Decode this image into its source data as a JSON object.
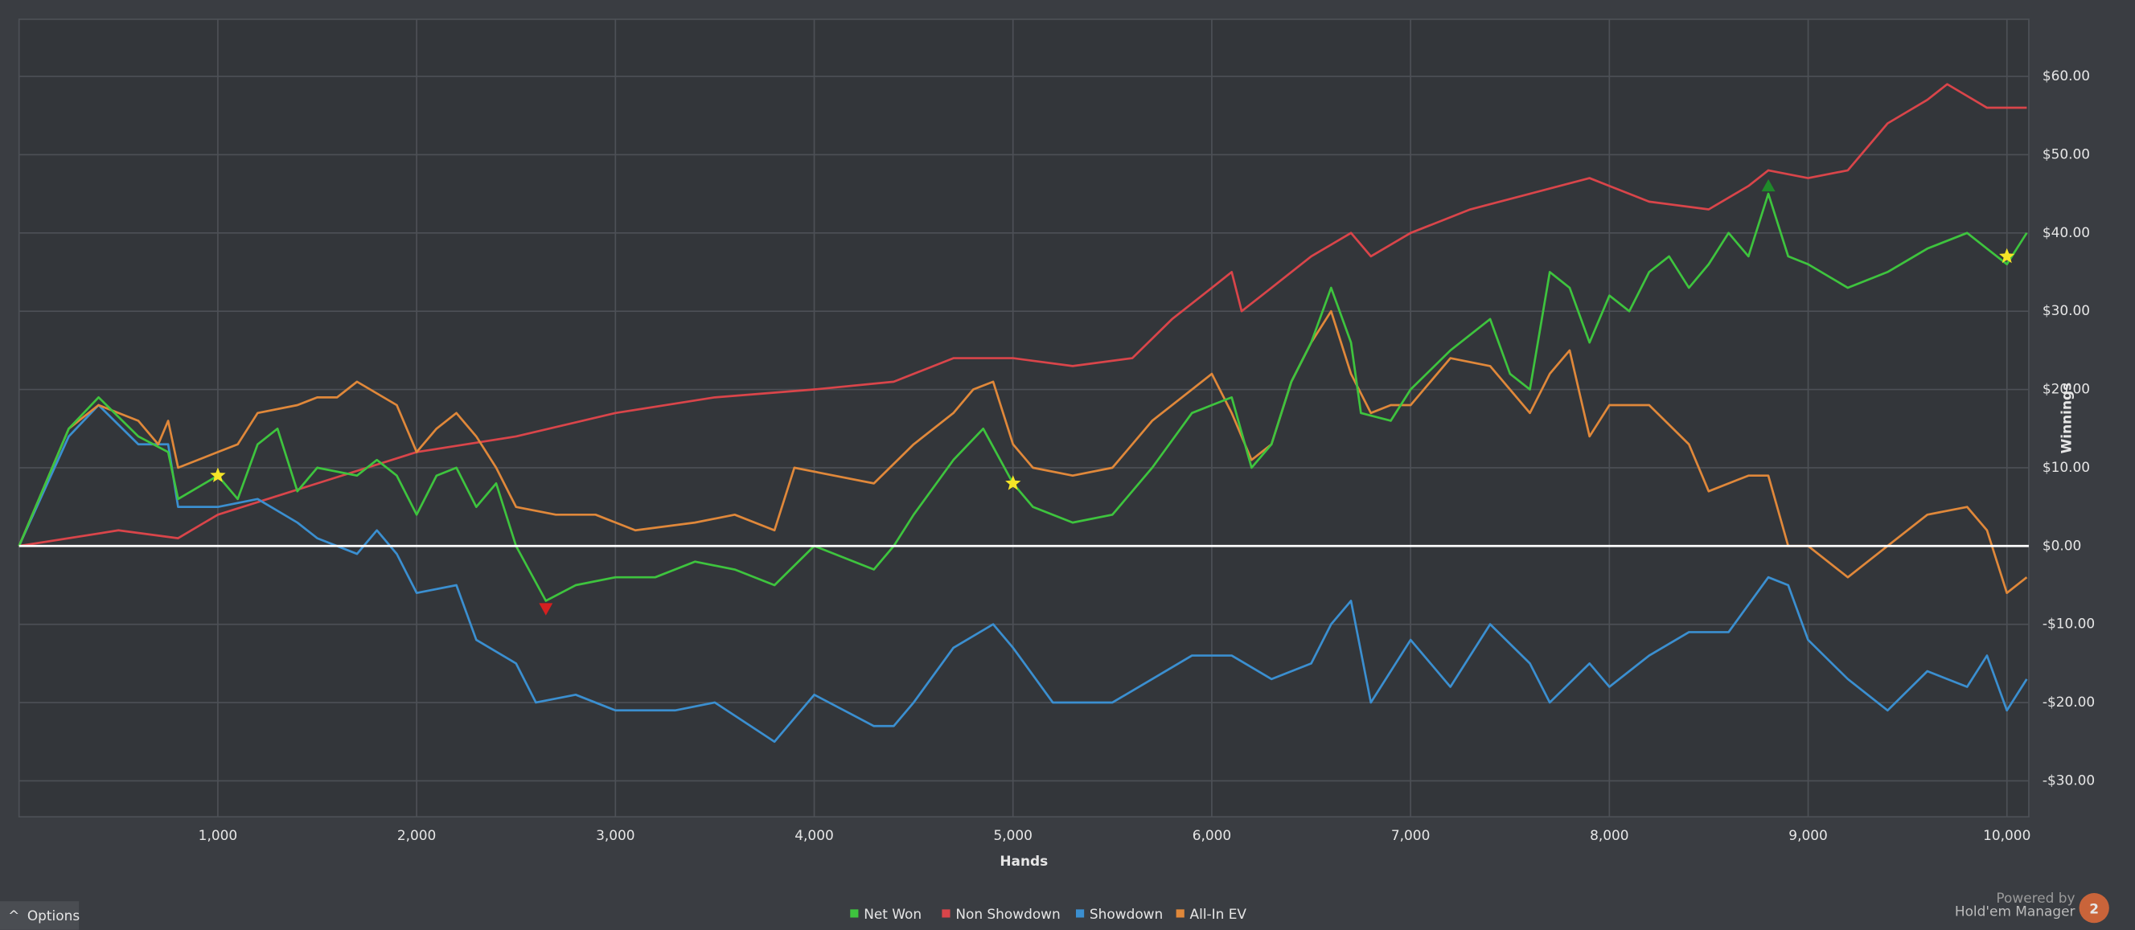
{
  "chart_data": {
    "type": "line",
    "x_label": "Hands",
    "y_label": "Winnings",
    "xlim": [
      0,
      10110
    ],
    "ylim": [
      -34.6,
      67.3
    ],
    "xticks": [
      {
        "value": 1000,
        "label": "1,000"
      },
      {
        "value": 2000,
        "label": "2,000"
      },
      {
        "value": 3000,
        "label": "3,000"
      },
      {
        "value": 4000,
        "label": "4,000"
      },
      {
        "value": 5000,
        "label": "5,000"
      },
      {
        "value": 6000,
        "label": "6,000"
      },
      {
        "value": 7000,
        "label": "7,000"
      },
      {
        "value": 8000,
        "label": "8,000"
      },
      {
        "value": 9000,
        "label": "9,000"
      },
      {
        "value": 10000,
        "label": "10,000"
      }
    ],
    "yticks": [
      {
        "value": -30,
        "label": "-$30.00"
      },
      {
        "value": -20,
        "label": "-$20.00"
      },
      {
        "value": -10,
        "label": "-$10.00"
      },
      {
        "value": 0,
        "label": "$0.00"
      },
      {
        "value": 10,
        "label": "$10.00"
      },
      {
        "value": 20,
        "label": "$20.00"
      },
      {
        "value": 30,
        "label": "$30.00"
      },
      {
        "value": 40,
        "label": "$40.00"
      },
      {
        "value": 50,
        "label": "$50.00"
      },
      {
        "value": 60,
        "label": "$60.00"
      }
    ],
    "grid": true,
    "zero_line": true,
    "series": [
      {
        "name": "Net Won",
        "color": "#3ec43e",
        "x": [
          0,
          250,
          400,
          600,
          750,
          800,
          1000,
          1100,
          1200,
          1300,
          1400,
          1500,
          1700,
          1800,
          1900,
          2000,
          2100,
          2200,
          2300,
          2400,
          2500,
          2650,
          2800,
          3000,
          3200,
          3400,
          3600,
          3800,
          4000,
          4200,
          4300,
          4400,
          4500,
          4700,
          4850,
          5000,
          5100,
          5300,
          5500,
          5700,
          5900,
          6000,
          6100,
          6200,
          6300,
          6400,
          6500,
          6600,
          6700,
          6750,
          6900,
          7000,
          7200,
          7400,
          7500,
          7600,
          7700,
          7800,
          7900,
          8000,
          8100,
          8200,
          8300,
          8400,
          8500,
          8600,
          8700,
          8800,
          8900,
          9000,
          9200,
          9400,
          9600,
          9800,
          9900,
          10000,
          10100
        ],
        "values": [
          0,
          15,
          19,
          14,
          12,
          6,
          9,
          6,
          13,
          15,
          7,
          10,
          9,
          11,
          9,
          4,
          9,
          10,
          5,
          8,
          0,
          -7,
          -5,
          -4,
          -4,
          -2,
          -3,
          -5,
          0,
          -2,
          -3,
          0,
          4,
          11,
          15,
          8,
          5,
          3,
          4,
          10,
          17,
          18,
          19,
          10,
          13,
          21,
          26,
          33,
          26,
          17,
          16,
          20,
          25,
          29,
          22,
          20,
          35,
          33,
          26,
          32,
          30,
          35,
          37,
          33,
          36,
          40,
          37,
          45,
          37,
          36,
          33,
          35,
          38,
          40,
          38,
          36,
          40
        ]
      },
      {
        "name": "Non Showdown",
        "color": "#d9454a",
        "x": [
          0,
          500,
          800,
          1000,
          1500,
          2000,
          2500,
          3000,
          3500,
          4000,
          4400,
          4700,
          5000,
          5300,
          5600,
          5800,
          6000,
          6100,
          6150,
          6300,
          6500,
          6700,
          6800,
          7000,
          7300,
          7600,
          7900,
          8000,
          8200,
          8500,
          8700,
          8800,
          9000,
          9200,
          9400,
          9600,
          9700,
          9900,
          10100
        ],
        "values": [
          0,
          2,
          1,
          4,
          8,
          12,
          14,
          17,
          19,
          20,
          21,
          24,
          24,
          23,
          24,
          29,
          33,
          35,
          30,
          33,
          37,
          40,
          37,
          40,
          43,
          45,
          47,
          46,
          44,
          43,
          46,
          48,
          47,
          48,
          54,
          57,
          59,
          56,
          56
        ]
      },
      {
        "name": "Showdown",
        "color": "#3b8fd0",
        "x": [
          0,
          250,
          400,
          600,
          750,
          800,
          1000,
          1200,
          1400,
          1500,
          1700,
          1800,
          1900,
          2000,
          2200,
          2300,
          2500,
          2600,
          2800,
          3000,
          3300,
          3500,
          3800,
          4000,
          4300,
          4400,
          4500,
          4700,
          4900,
          5000,
          5200,
          5500,
          5700,
          5900,
          6100,
          6300,
          6500,
          6600,
          6700,
          6800,
          7000,
          7200,
          7400,
          7600,
          7700,
          7900,
          8000,
          8200,
          8400,
          8600,
          8800,
          8900,
          9000,
          9200,
          9400,
          9600,
          9800,
          9900,
          10000,
          10100
        ],
        "values": [
          0,
          14,
          18,
          13,
          13,
          5,
          5,
          6,
          3,
          1,
          -1,
          2,
          -1,
          -6,
          -5,
          -12,
          -15,
          -20,
          -19,
          -21,
          -21,
          -20,
          -25,
          -19,
          -23,
          -23,
          -20,
          -13,
          -10,
          -13,
          -20,
          -20,
          -17,
          -14,
          -14,
          -17,
          -15,
          -10,
          -7,
          -20,
          -12,
          -18,
          -10,
          -15,
          -20,
          -15,
          -18,
          -14,
          -11,
          -11,
          -4,
          -5,
          -12,
          -17,
          -21,
          -16,
          -18,
          -14,
          -21,
          -17
        ]
      },
      {
        "name": "All-In EV",
        "color": "#e0883a",
        "x": [
          0,
          250,
          400,
          600,
          700,
          750,
          800,
          1000,
          1100,
          1200,
          1400,
          1500,
          1600,
          1700,
          1900,
          2000,
          2100,
          2200,
          2300,
          2400,
          2500,
          2700,
          2900,
          3100,
          3400,
          3600,
          3800,
          3900,
          4100,
          4300,
          4500,
          4700,
          4800,
          4900,
          5000,
          5100,
          5300,
          5500,
          5700,
          5900,
          6000,
          6100,
          6200,
          6300,
          6400,
          6500,
          6600,
          6700,
          6800,
          6900,
          7000,
          7200,
          7400,
          7600,
          7700,
          7800,
          7900,
          8000,
          8200,
          8400,
          8500,
          8700,
          8800,
          8900,
          9000,
          9200,
          9400,
          9600,
          9800,
          9900,
          10000,
          10100
        ],
        "values": [
          0,
          15,
          18,
          16,
          13,
          16,
          10,
          12,
          13,
          17,
          18,
          19,
          19,
          21,
          18,
          12,
          15,
          17,
          14,
          10,
          5,
          4,
          4,
          2,
          3,
          4,
          2,
          10,
          9,
          8,
          13,
          17,
          20,
          21,
          13,
          10,
          9,
          10,
          16,
          20,
          22,
          17,
          11,
          13,
          21,
          26,
          30,
          22,
          17,
          18,
          18,
          24,
          23,
          17,
          22,
          25,
          14,
          18,
          18,
          13,
          7,
          9,
          9,
          0,
          0,
          -4,
          0,
          4,
          5,
          2,
          -6,
          -4
        ]
      }
    ],
    "markers": [
      {
        "shape": "star",
        "color": "#f5e427",
        "x": 1000,
        "y": 9
      },
      {
        "shape": "star",
        "color": "#f5e427",
        "x": 5000,
        "y": 8
      },
      {
        "shape": "star",
        "color": "#f5e427",
        "x": 10000,
        "y": 37
      },
      {
        "shape": "triangle-down",
        "color": "#d42020",
        "x": 2650,
        "y": -8
      },
      {
        "shape": "triangle-up",
        "color": "#1f8a2a",
        "x": 8800,
        "y": 46
      }
    ]
  },
  "ui": {
    "options_button": "Options",
    "powered_by": "Powered by",
    "brand": "Hold'em Manager",
    "logo": "2"
  }
}
